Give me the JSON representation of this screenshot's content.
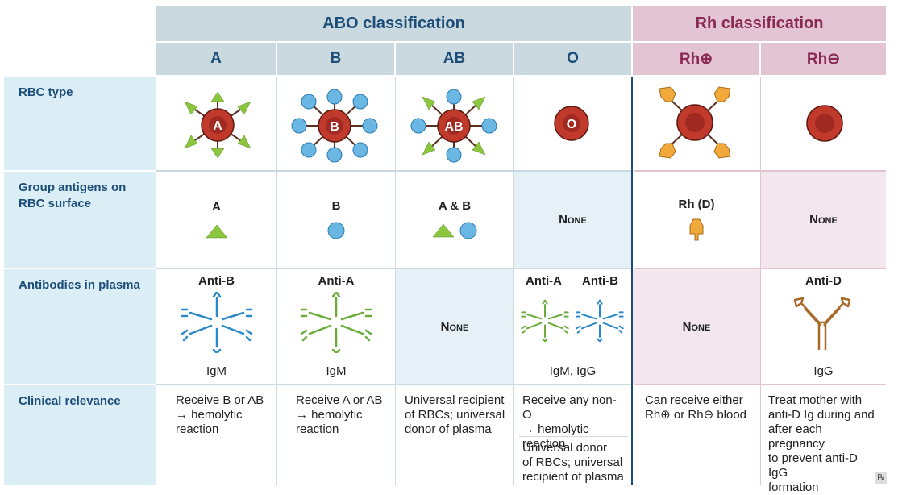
{
  "headers": {
    "abo": "ABO classification",
    "rh": "Rh classification",
    "groups": [
      "A",
      "B",
      "AB",
      "O",
      "Rh⊕",
      "Rh⊖"
    ]
  },
  "rows": {
    "rbc_type": "RBC type",
    "antigens": "Group antigens on\nRBC surface",
    "antibodies": "Antibodies in plasma",
    "clinical": "Clinical relevance"
  },
  "rbc_labels": [
    "A",
    "B",
    "AB",
    "O"
  ],
  "antigens": [
    "A",
    "B",
    "A & B",
    "None",
    "Rh (D)",
    "None"
  ],
  "antibodies": {
    "a_name": "Anti-B",
    "b_name": "Anti-A",
    "ab_none": "None",
    "o_name1": "Anti-A",
    "o_name2": "Anti-B",
    "rhpos_none": "None",
    "rhneg_name": "Anti-D",
    "a_class": "IgM",
    "b_class": "IgM",
    "o_class": "IgM, IgG",
    "rhneg_class": "IgG"
  },
  "clinical": {
    "a": "Receive B or AB\n→ hemolytic\nreaction",
    "b": "Receive A or AB\n→ hemolytic\nreaction",
    "ab": "Universal recipient\nof RBCs; universal\ndonor of plasma",
    "o1": "Receive any non-O\n→ hemolytic\nreaction",
    "o2": "Universal donor\nof RBCs; universal\nrecipient of plasma",
    "rhpos": "Can receive either\nRh⊕ or Rh⊖ blood",
    "rhneg": "Treat mother with\nanti-D Ig during and\nafter each pregnancy\nto prevent anti-D IgG\nformation"
  },
  "colors": {
    "abo_header": "#cad8df",
    "rh_header": "#e3c4d2",
    "row_label_bg": "#dceef5",
    "antigen_a": "#8cc63f",
    "antigen_b": "#6ab7e3",
    "antigen_rh": "#f0a93a",
    "rbc": "#c0392b",
    "igm_blue": "#2a8ac9",
    "igm_green": "#6aab3a",
    "igg_brown": "#a86a2a"
  },
  "footer": "℞"
}
